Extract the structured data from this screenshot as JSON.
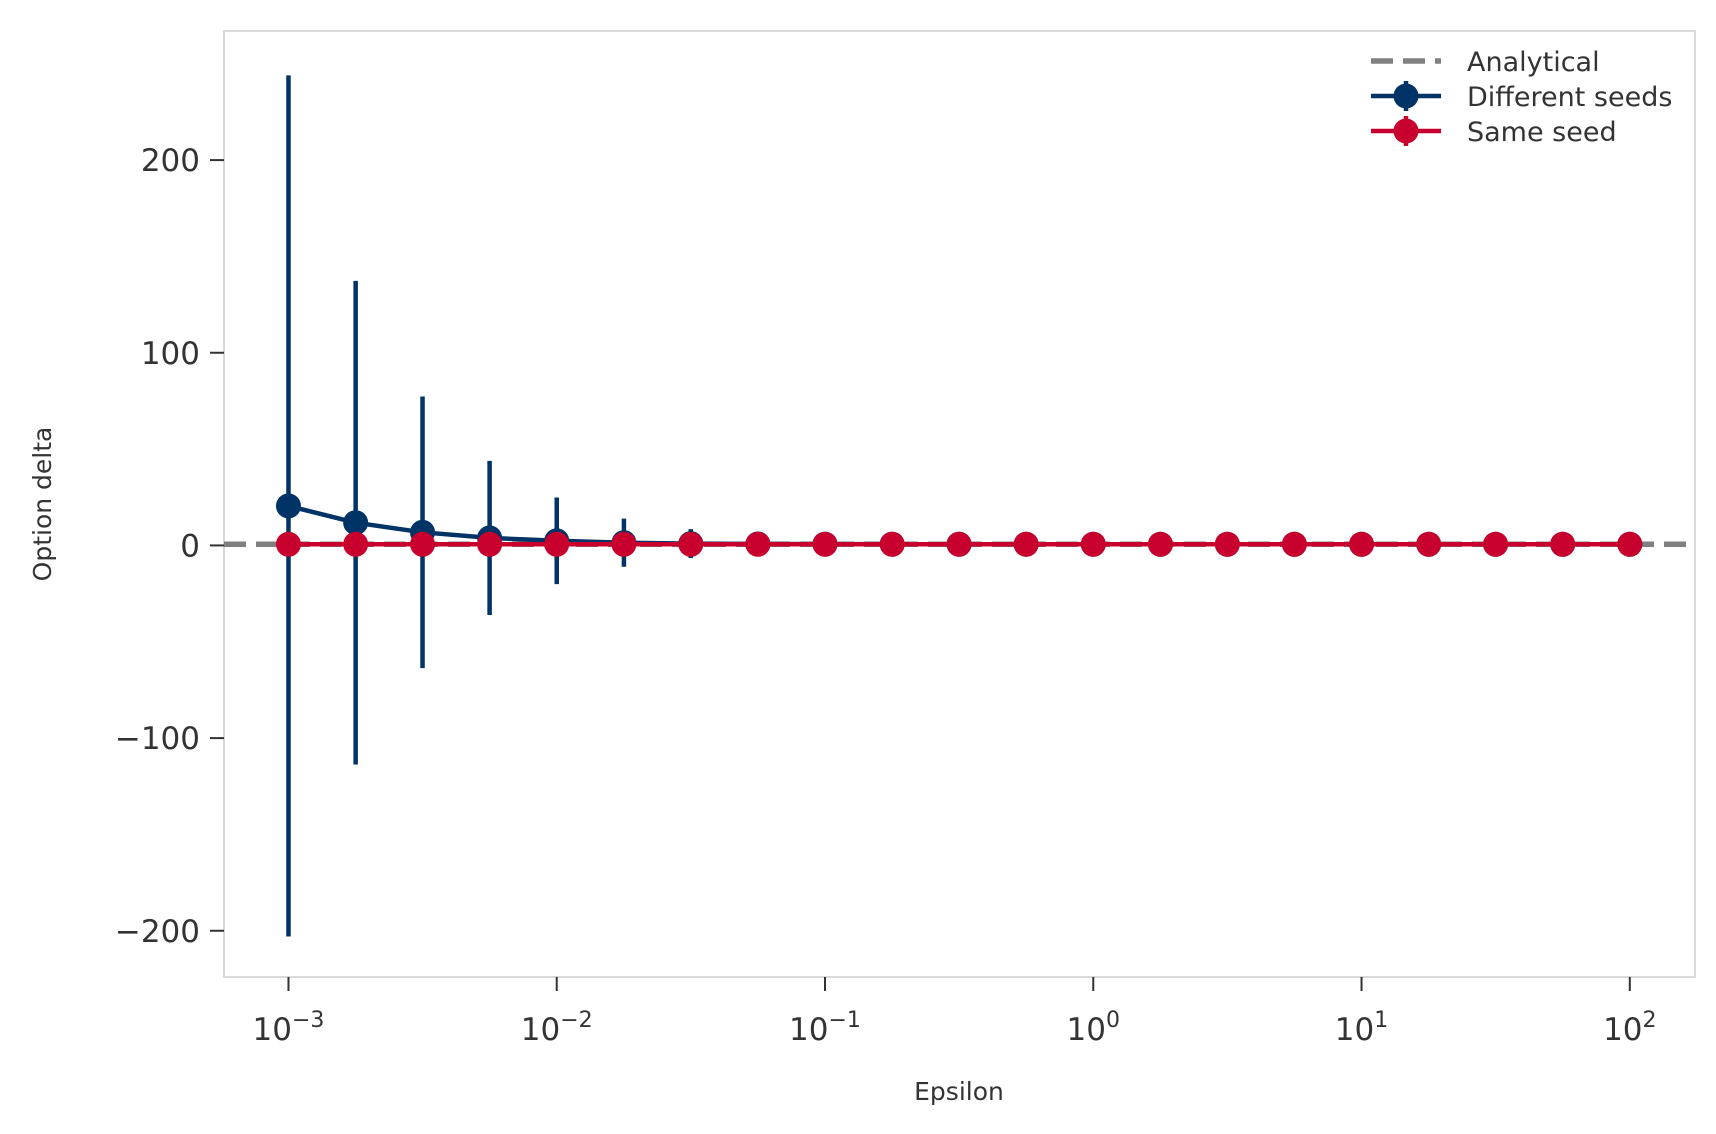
{
  "chart_data": {
    "type": "line",
    "xlabel": "Epsilon",
    "ylabel": "Option delta",
    "xscale": "log",
    "xlim": [
      0.000575,
      175
    ],
    "ylim": [
      -224,
      267
    ],
    "x_ticks": [
      0.001,
      0.01,
      0.1,
      1,
      10,
      100
    ],
    "x_tick_labels": [
      {
        "base": "10",
        "exp": "−3"
      },
      {
        "base": "10",
        "exp": "−2"
      },
      {
        "base": "10",
        "exp": "−1"
      },
      {
        "base": "10",
        "exp": "0"
      },
      {
        "base": "10",
        "exp": "1"
      },
      {
        "base": "10",
        "exp": "2"
      }
    ],
    "y_ticks": [
      200,
      100,
      0,
      -100,
      -200
    ],
    "y_tick_labels": [
      "200",
      "100",
      "0",
      "−100",
      "−200"
    ],
    "grid": false,
    "legend_position": "top-right",
    "x": [
      0.001,
      0.00178,
      0.00316,
      0.00562,
      0.01,
      0.0178,
      0.0316,
      0.0562,
      0.1,
      0.178,
      0.316,
      0.562,
      1,
      1.78,
      3.16,
      5.62,
      10,
      17.8,
      31.6,
      56.2,
      100
    ],
    "reference": {
      "name": "Analytical",
      "value": 0.6,
      "color": "#808080"
    },
    "series": [
      {
        "name": "Different seeds",
        "color": "#003366",
        "values": [
          20.5,
          11.8,
          6.8,
          3.9,
          2.4,
          1.4,
          0.95,
          0.75,
          0.68,
          0.64,
          0.62,
          0.61,
          0.61,
          0.6,
          0.6,
          0.6,
          0.6,
          0.6,
          0.6,
          0.6,
          0.6
        ],
        "errors": [
          223.5,
          125.5,
          70.5,
          40,
          22.5,
          12.5,
          7.5,
          4.2,
          2.4,
          1.3,
          0.75,
          0.42,
          0.24,
          0.13,
          0.07,
          0.04,
          0.02,
          0.01,
          0.01,
          0.01,
          0.01
        ]
      },
      {
        "name": "Same seed",
        "color": "#C8002D",
        "values": [
          0.6,
          0.6,
          0.6,
          0.6,
          0.6,
          0.6,
          0.6,
          0.6,
          0.6,
          0.6,
          0.6,
          0.6,
          0.6,
          0.6,
          0.6,
          0.6,
          0.6,
          0.6,
          0.6,
          0.6,
          0.6
        ],
        "errors": [
          0.3,
          0.2,
          0.15,
          0.1,
          0.08,
          0.05,
          0.04,
          0.03,
          0.02,
          0.02,
          0.01,
          0.01,
          0.01,
          0.01,
          0.01,
          0.01,
          0.01,
          0.01,
          0.01,
          0.01,
          0.01
        ]
      }
    ],
    "colors": {
      "frame": "#d9d9d9",
      "tick": "#333333"
    }
  }
}
